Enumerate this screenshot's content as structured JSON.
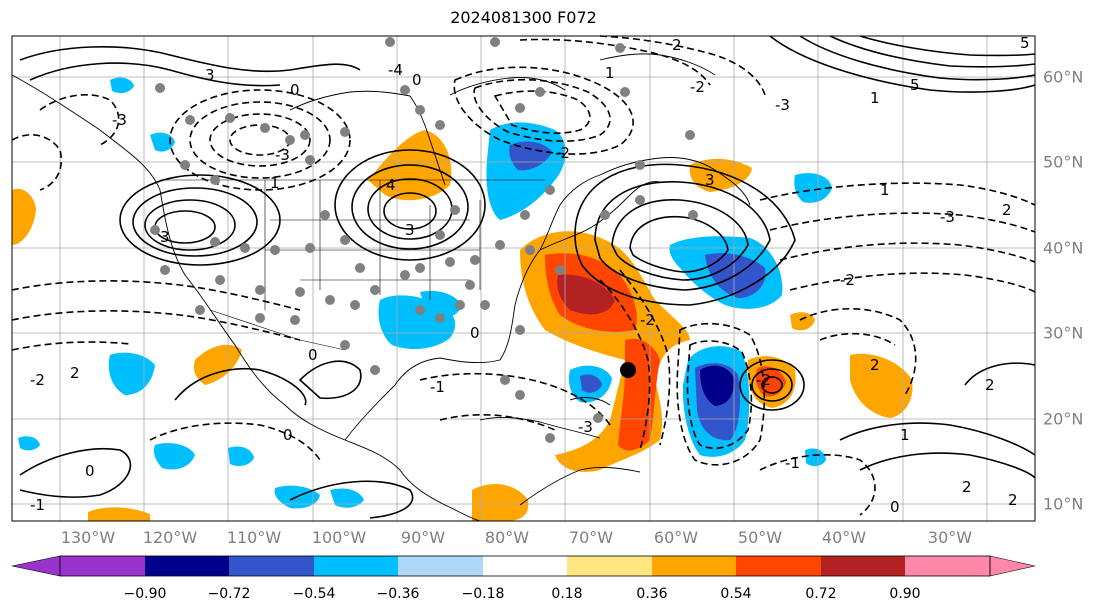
{
  "title": "2024081300 F072",
  "lon_labels": [
    "130°W",
    "120°W",
    "110°W",
    "100°W",
    "90°W",
    "80°W",
    "70°W",
    "60°W",
    "50°W",
    "40°W",
    "30°W"
  ],
  "lat_labels": [
    "60°N",
    "50°N",
    "40°N",
    "30°N",
    "20°N",
    "10°N"
  ],
  "colorbar": {
    "labels": [
      "−0.90",
      "−0.72",
      "−0.54",
      "−0.36",
      "−0.18",
      "0.18",
      "0.36",
      "0.54",
      "0.72",
      "0.90"
    ],
    "colors": [
      "#9933cc",
      "#00008b",
      "#3355cc",
      "#00bfff",
      "#add8f7",
      "#ffffff",
      "#ffe680",
      "#ffa500",
      "#ff4500",
      "#b22222",
      "#ff88aa"
    ]
  },
  "contour_labels": [
    "2",
    "-2",
    "3",
    "-3",
    "4",
    "-4",
    "5",
    "1",
    "-1",
    "0"
  ],
  "palette": {
    "dark_blue": "#0a0a8c",
    "mid_blue": "#3355cc",
    "light_blue": "#00bfff",
    "orange": "#ffa500",
    "red_orange": "#ff4500",
    "dark_red": "#b22222",
    "station": "#808080"
  }
}
